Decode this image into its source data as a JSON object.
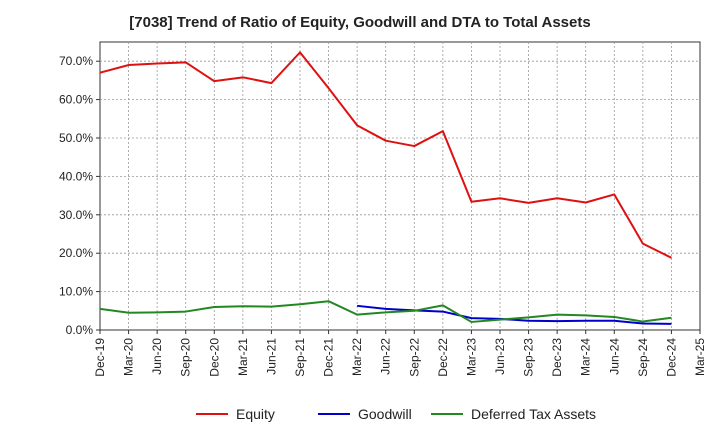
{
  "chart_data": {
    "type": "line",
    "title": "[7038]  Trend of Ratio of Equity, Goodwill and DTA to Total Assets",
    "xlabel": "",
    "ylabel": "",
    "x_ticks": [
      "Dec-19",
      "Mar-20",
      "Jun-20",
      "Sep-20",
      "Dec-20",
      "Mar-21",
      "Jun-21",
      "Sep-21",
      "Dec-21",
      "Mar-22",
      "Jun-22",
      "Sep-22",
      "Dec-22",
      "Mar-23",
      "Jun-23",
      "Sep-23",
      "Dec-23",
      "Mar-24",
      "Jun-24",
      "Sep-24",
      "Dec-24",
      "Mar-25"
    ],
    "y_ticks": [
      "0.0%",
      "10.0%",
      "20.0%",
      "30.0%",
      "40.0%",
      "50.0%",
      "60.0%",
      "70.0%"
    ],
    "ylim": [
      0,
      75
    ],
    "grid": true,
    "legend_position": "bottom",
    "series": [
      {
        "name": "Equity",
        "color": "#dd1111",
        "points": [
          [
            "Dec-19",
            67.0
          ],
          [
            "Mar-20",
            69.0
          ],
          [
            "Jun-20",
            69.4
          ],
          [
            "Sep-20",
            69.7
          ],
          [
            "Dec-20",
            64.8
          ],
          [
            "Mar-21",
            65.8
          ],
          [
            "Jun-21",
            64.3
          ],
          [
            "Sep-21",
            72.3
          ],
          [
            "Dec-21",
            63.0
          ],
          [
            "Mar-22",
            53.3
          ],
          [
            "Jun-22",
            49.3
          ],
          [
            "Sep-22",
            47.9
          ],
          [
            "Dec-22",
            51.8
          ],
          [
            "Mar-23",
            33.4
          ],
          [
            "Jun-23",
            34.3
          ],
          [
            "Sep-23",
            33.1
          ],
          [
            "Dec-23",
            34.3
          ],
          [
            "Mar-24",
            33.2
          ],
          [
            "Jun-24",
            35.3
          ],
          [
            "Sep-24",
            22.5
          ],
          [
            "Dec-24",
            18.8
          ]
        ]
      },
      {
        "name": "Goodwill",
        "color": "#0000cc",
        "points": [
          [
            "Mar-22",
            6.3
          ],
          [
            "Jun-22",
            5.5
          ],
          [
            "Sep-22",
            5.1
          ],
          [
            "Dec-22",
            4.8
          ],
          [
            "Mar-23",
            3.1
          ],
          [
            "Jun-23",
            2.9
          ],
          [
            "Sep-23",
            2.4
          ],
          [
            "Dec-23",
            2.3
          ],
          [
            "Mar-24",
            2.4
          ],
          [
            "Jun-24",
            2.4
          ],
          [
            "Sep-24",
            1.7
          ],
          [
            "Dec-24",
            1.6
          ]
        ]
      },
      {
        "name": "Deferred Tax Assets",
        "color": "#228822",
        "points": [
          [
            "Dec-19",
            5.5
          ],
          [
            "Mar-20",
            4.5
          ],
          [
            "Jun-20",
            4.6
          ],
          [
            "Sep-20",
            4.8
          ],
          [
            "Dec-20",
            6.0
          ],
          [
            "Mar-21",
            6.2
          ],
          [
            "Jun-21",
            6.1
          ],
          [
            "Sep-21",
            6.7
          ],
          [
            "Dec-21",
            7.5
          ],
          [
            "Mar-22",
            4.0
          ],
          [
            "Jun-22",
            4.6
          ],
          [
            "Sep-22",
            5.0
          ],
          [
            "Dec-22",
            6.4
          ],
          [
            "Mar-23",
            2.1
          ],
          [
            "Jun-23",
            2.7
          ],
          [
            "Sep-23",
            3.3
          ],
          [
            "Dec-23",
            4.0
          ],
          [
            "Mar-24",
            3.8
          ],
          [
            "Jun-24",
            3.4
          ],
          [
            "Sep-24",
            2.2
          ],
          [
            "Dec-24",
            3.2
          ]
        ]
      }
    ]
  }
}
